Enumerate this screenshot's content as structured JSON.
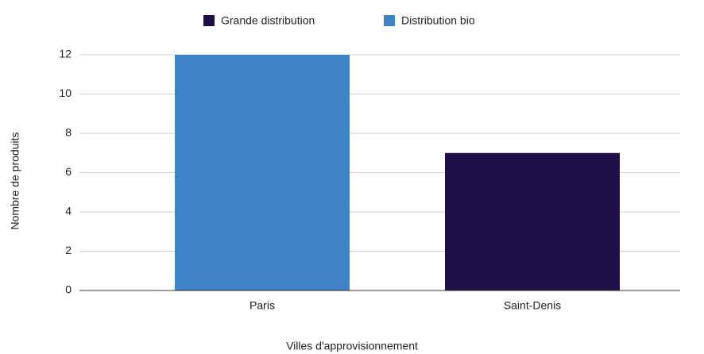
{
  "chart_data": {
    "type": "bar",
    "stacked": true,
    "categories": [
      "Paris",
      "Saint-Denis"
    ],
    "series": [
      {
        "name": "Grande distribution",
        "color": "#1f1147",
        "values": [
          null,
          7
        ]
      },
      {
        "name": "Distribution bio",
        "color": "#3d83c6",
        "values": [
          12,
          null
        ]
      }
    ],
    "xlabel": "Villes d'approvisionnement",
    "ylabel": "Nombre de produits",
    "ylim": [
      0,
      12
    ],
    "yticks": [
      0,
      2,
      4,
      6,
      8,
      10,
      12
    ],
    "grid": true,
    "legend": "top"
  }
}
